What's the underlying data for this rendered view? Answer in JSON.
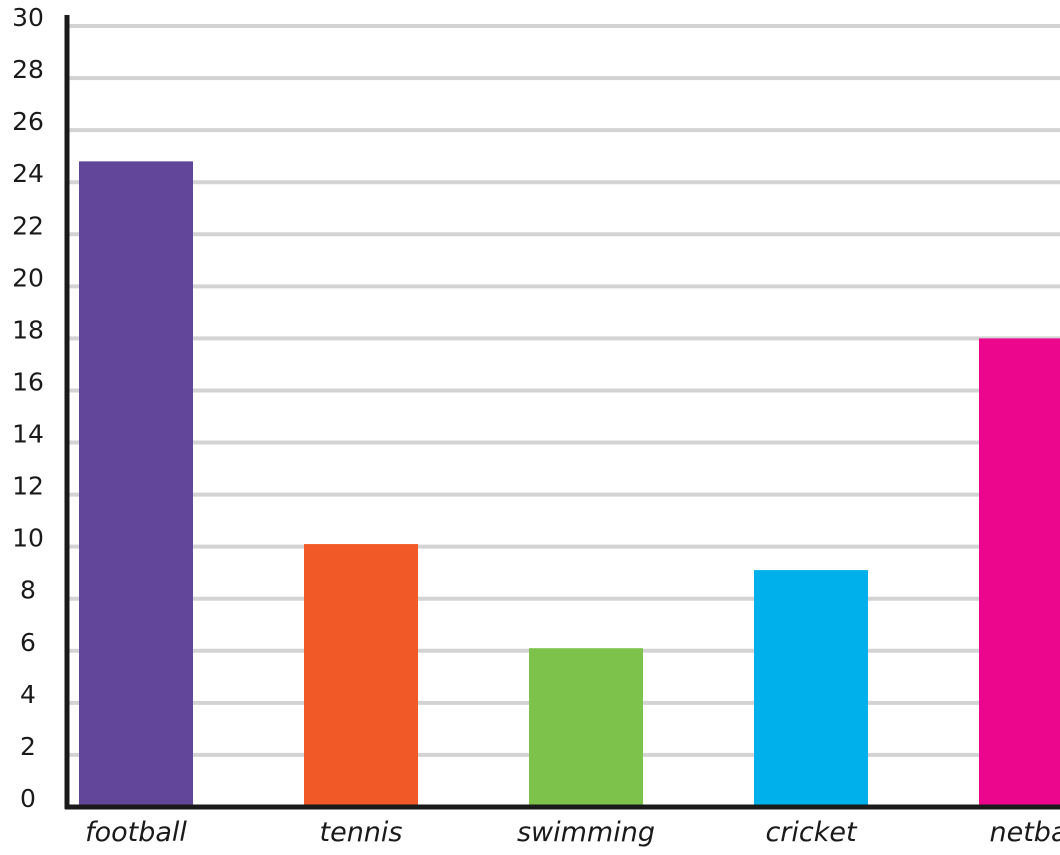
{
  "chart_data": {
    "type": "bar",
    "categories": [
      "football",
      "tennis",
      "swimming",
      "cricket",
      "netball"
    ],
    "values": [
      24.8,
      10.1,
      6.1,
      9.1,
      18.0
    ],
    "colors": [
      "#624699",
      "#f15a27",
      "#7dc24a",
      "#00b0eb",
      "#ec058d"
    ],
    "yticks": [
      "0",
      "2",
      "4",
      "6",
      "8",
      "10",
      "12",
      "14",
      "16",
      "18",
      "20",
      "22",
      "24",
      "26",
      "28",
      "30"
    ],
    "ylim": [
      0,
      30
    ],
    "grid": true,
    "grid_color": "#d3d3d3",
    "axis_color": "#1a1a1a",
    "title": "",
    "xlabel": "",
    "ylabel": ""
  }
}
